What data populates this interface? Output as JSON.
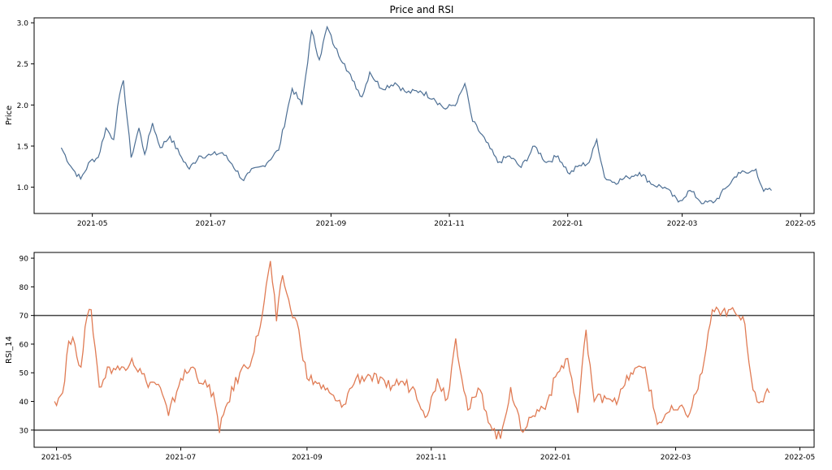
{
  "chart_data": [
    {
      "type": "line",
      "title": "Price and RSI",
      "xlabel": "",
      "ylabel": "Price",
      "xlim": [
        "2021-04-01",
        "2022-05-08"
      ],
      "ylim": [
        0.68,
        3.06
      ],
      "x_ticks": [
        "2021-05",
        "2021-07",
        "2021-09",
        "2021-11",
        "2022-01",
        "2022-03",
        "2022-05"
      ],
      "y_ticks": [
        "1.0",
        "1.5",
        "2.0",
        "2.5",
        "3.0"
      ],
      "series": [
        {
          "color": "#4d6f94",
          "x": [
            "2021-04-15",
            "2021-04-20",
            "2021-04-25",
            "2021-04-30",
            "2021-05-04",
            "2021-05-08",
            "2021-05-12",
            "2021-05-14",
            "2021-05-17",
            "2021-05-21",
            "2021-05-25",
            "2021-05-28",
            "2021-06-01",
            "2021-06-05",
            "2021-06-10",
            "2021-06-15",
            "2021-06-20",
            "2021-06-25",
            "2021-07-01",
            "2021-07-07",
            "2021-07-12",
            "2021-07-18",
            "2021-07-21",
            "2021-07-28",
            "2021-08-05",
            "2021-08-12",
            "2021-08-17",
            "2021-08-22",
            "2021-08-26",
            "2021-08-30",
            "2021-09-03",
            "2021-09-08",
            "2021-09-12",
            "2021-09-17",
            "2021-09-21",
            "2021-09-27",
            "2021-10-04",
            "2021-10-10",
            "2021-10-17",
            "2021-10-24",
            "2021-10-30",
            "2021-11-05",
            "2021-11-09",
            "2021-11-13",
            "2021-11-20",
            "2021-11-26",
            "2021-12-02",
            "2021-12-08",
            "2021-12-15",
            "2021-12-21",
            "2021-12-27",
            "2022-01-02",
            "2022-01-06",
            "2022-01-12",
            "2022-01-16",
            "2022-01-20",
            "2022-01-25",
            "2022-02-01",
            "2022-02-07",
            "2022-02-14",
            "2022-02-20",
            "2022-02-27",
            "2022-03-05",
            "2022-03-12",
            "2022-03-18",
            "2022-03-24",
            "2022-03-30",
            "2022-04-04",
            "2022-04-08",
            "2022-04-12",
            "2022-04-16"
          ],
          "y": [
            1.48,
            1.25,
            1.1,
            1.32,
            1.36,
            1.72,
            1.58,
            1.98,
            2.3,
            1.36,
            1.72,
            1.4,
            1.78,
            1.48,
            1.62,
            1.4,
            1.22,
            1.38,
            1.39,
            1.42,
            1.28,
            1.08,
            1.18,
            1.26,
            1.45,
            2.2,
            2.0,
            2.9,
            2.55,
            2.95,
            2.7,
            2.5,
            2.3,
            2.1,
            2.4,
            2.2,
            2.27,
            2.15,
            2.17,
            2.08,
            1.95,
            2.03,
            2.26,
            1.8,
            1.55,
            1.3,
            1.38,
            1.24,
            1.5,
            1.3,
            1.38,
            1.16,
            1.25,
            1.3,
            1.58,
            1.12,
            1.06,
            1.12,
            1.18,
            1.03,
            1.0,
            0.82,
            0.96,
            0.8,
            0.83,
            1.0,
            1.18,
            1.17,
            1.22,
            0.95,
            0.96
          ]
        }
      ]
    },
    {
      "type": "line",
      "title": "",
      "xlabel": "",
      "ylabel": "RSI_14",
      "xlim": [
        "2021-04-20",
        "2022-05-08"
      ],
      "ylim": [
        24,
        92
      ],
      "x_ticks": [
        "2021-05",
        "2021-07",
        "2021-09",
        "2021-11",
        "2022-01",
        "2022-03",
        "2022-05"
      ],
      "y_ticks": [
        "30",
        "40",
        "50",
        "60",
        "70",
        "80",
        "90"
      ],
      "reference_lines": [
        70,
        30
      ],
      "series": [
        {
          "color": "#e07b54",
          "x": [
            "2021-04-30",
            "2021-05-04",
            "2021-05-07",
            "2021-05-10",
            "2021-05-13",
            "2021-05-15",
            "2021-05-18",
            "2021-05-22",
            "2021-05-27",
            "2021-06-01",
            "2021-06-07",
            "2021-06-14",
            "2021-06-20",
            "2021-06-25",
            "2021-07-01",
            "2021-07-07",
            "2021-07-12",
            "2021-07-17",
            "2021-07-20",
            "2021-07-23",
            "2021-07-30",
            "2021-08-05",
            "2021-08-10",
            "2021-08-14",
            "2021-08-17",
            "2021-08-20",
            "2021-08-24",
            "2021-08-28",
            "2021-09-01",
            "2021-09-05",
            "2021-09-10",
            "2021-09-18",
            "2021-09-25",
            "2021-10-02",
            "2021-10-10",
            "2021-10-17",
            "2021-10-24",
            "2021-10-30",
            "2021-11-04",
            "2021-11-09",
            "2021-11-13",
            "2021-11-19",
            "2021-11-25",
            "2021-12-01",
            "2021-12-05",
            "2021-12-10",
            "2021-12-15",
            "2021-12-21",
            "2021-12-28",
            "2022-01-02",
            "2022-01-07",
            "2022-01-12",
            "2022-01-16",
            "2022-01-20",
            "2022-01-25",
            "2022-02-01",
            "2022-02-07",
            "2022-02-14",
            "2022-02-20",
            "2022-02-25",
            "2022-03-02",
            "2022-03-08",
            "2022-03-14",
            "2022-03-19",
            "2022-03-23",
            "2022-03-27",
            "2022-03-31",
            "2022-04-04",
            "2022-04-08",
            "2022-04-12",
            "2022-04-16"
          ],
          "y": [
            40,
            43,
            61,
            60,
            52,
            66,
            72,
            45,
            52,
            51,
            55,
            47,
            46,
            35,
            48,
            52,
            46,
            43,
            29,
            38,
            50,
            55,
            70,
            89,
            68,
            84,
            72,
            65,
            48,
            47,
            44,
            38,
            48,
            49,
            45,
            47,
            44,
            35,
            48,
            41,
            62,
            37,
            44,
            30,
            27,
            45,
            30,
            35,
            40,
            50,
            55,
            36,
            65,
            40,
            42,
            41,
            50,
            52,
            32,
            36,
            37,
            36,
            50,
            72,
            70,
            72,
            70,
            67,
            44,
            40,
            43
          ]
        }
      ]
    }
  ]
}
